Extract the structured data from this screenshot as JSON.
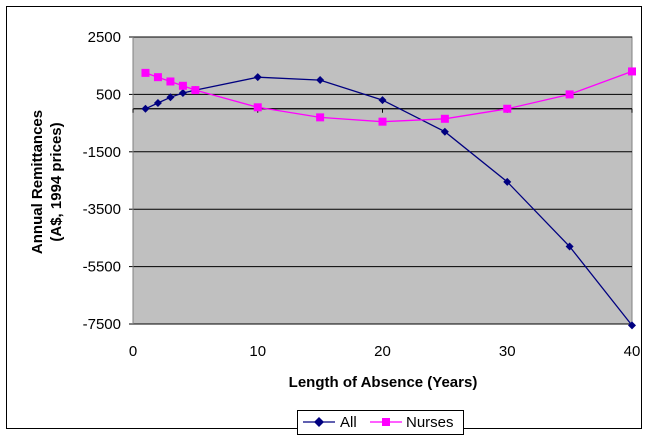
{
  "chart_data": {
    "type": "line",
    "title": "",
    "xlabel": "Length of Absence (Years)",
    "ylabel_line1": "Annual Remittances",
    "ylabel_line2": "(A$, 1994 prices)",
    "xlim": [
      0,
      40
    ],
    "ylim": [
      -7500,
      2500
    ],
    "x_ticks": [
      "0",
      "10",
      "20",
      "30",
      "40"
    ],
    "y_ticks": [
      "2500",
      "500",
      "-1500",
      "-3500",
      "-5500",
      "-7500"
    ],
    "grid": "horizontal",
    "legend_position": "bottom",
    "plot_background": "#c0c0c0",
    "series": [
      {
        "name": "All",
        "color": "#000080",
        "marker": "diamond",
        "x": [
          1,
          2,
          3,
          4,
          5,
          10,
          15,
          20,
          25,
          30,
          35,
          40
        ],
        "y": [
          0,
          200,
          400,
          550,
          650,
          1100,
          1000,
          300,
          -800,
          -2550,
          -4800,
          -7550
        ]
      },
      {
        "name": "Nurses",
        "color": "#ff00ff",
        "marker": "square",
        "x": [
          1,
          2,
          3,
          4,
          5,
          10,
          15,
          20,
          25,
          30,
          35,
          40
        ],
        "y": [
          1250,
          1100,
          950,
          800,
          650,
          50,
          -300,
          -450,
          -350,
          0,
          500,
          1300
        ]
      }
    ]
  }
}
